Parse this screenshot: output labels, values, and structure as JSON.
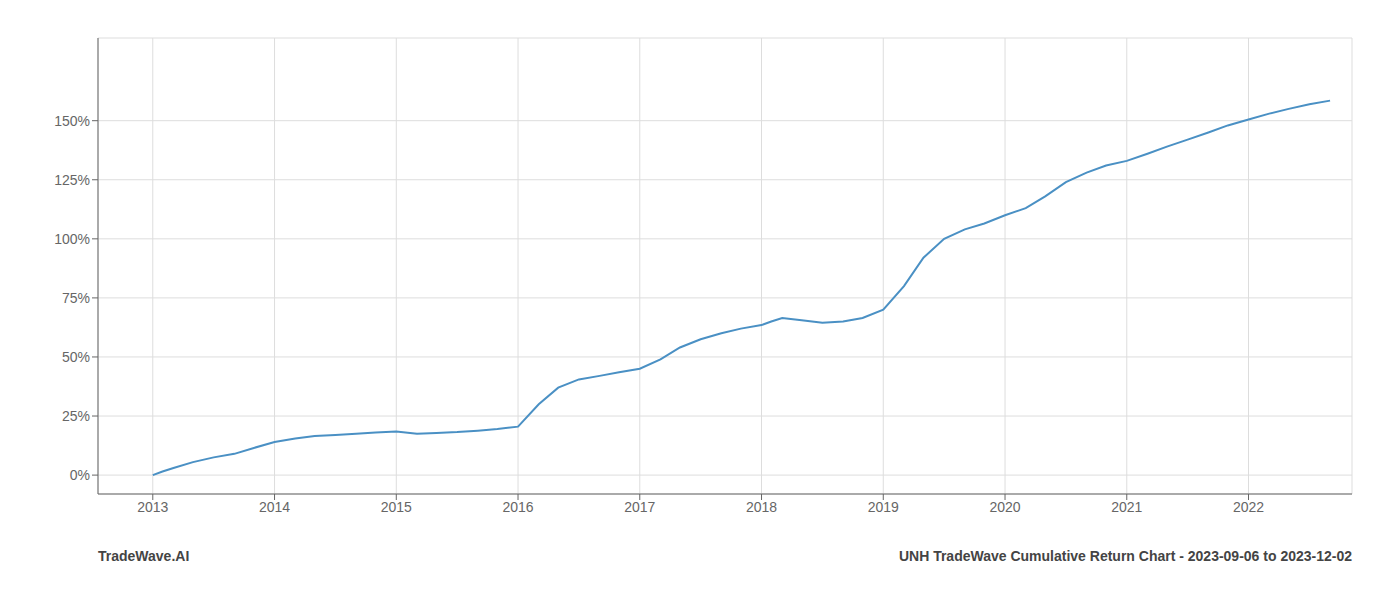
{
  "chart_data": {
    "type": "line",
    "annotations": [
      "TradeWave.AI",
      "UNH TradeWave Cumulative Return Chart - 2023-09-06 to 2023-12-02"
    ],
    "x": [
      2013.0,
      2013.08,
      2013.17,
      2013.33,
      2013.5,
      2013.67,
      2013.83,
      2014.0,
      2014.17,
      2014.33,
      2014.5,
      2014.67,
      2014.83,
      2015.0,
      2015.17,
      2015.33,
      2015.5,
      2015.67,
      2015.83,
      2016.0,
      2016.17,
      2016.33,
      2016.5,
      2016.67,
      2016.83,
      2017.0,
      2017.17,
      2017.33,
      2017.5,
      2017.67,
      2017.83,
      2018.0,
      2018.08,
      2018.17,
      2018.33,
      2018.5,
      2018.67,
      2018.83,
      2019.0,
      2019.17,
      2019.33,
      2019.5,
      2019.67,
      2019.83,
      2020.0,
      2020.17,
      2020.33,
      2020.5,
      2020.67,
      2020.83,
      2021.0,
      2021.17,
      2021.33,
      2021.5,
      2021.67,
      2021.83,
      2022.0,
      2022.17,
      2022.33,
      2022.5,
      2022.67
    ],
    "values": [
      0.0,
      1.5,
      3.0,
      5.5,
      7.5,
      9.0,
      11.5,
      14.0,
      15.5,
      16.5,
      17.0,
      17.5,
      18.0,
      18.5,
      17.5,
      17.8,
      18.2,
      18.8,
      19.5,
      20.5,
      30.0,
      37.0,
      40.5,
      42.0,
      43.5,
      45.0,
      49.0,
      54.0,
      57.5,
      60.0,
      62.0,
      63.5,
      65.0,
      66.5,
      65.5,
      64.5,
      65.0,
      66.5,
      70.0,
      80.0,
      92.0,
      100.0,
      104.0,
      106.5,
      110.0,
      113.0,
      118.0,
      124.0,
      128.0,
      131.0,
      133.0,
      136.0,
      139.0,
      142.0,
      145.0,
      148.0,
      150.5,
      153.0,
      155.0,
      157.0,
      158.5
    ],
    "color": "#4a90c4",
    "xlim": [
      2012.55,
      2022.85
    ],
    "xticks": [
      2013,
      2014,
      2015,
      2016,
      2017,
      2018,
      2019,
      2020,
      2021,
      2022
    ],
    "ylim": [
      -8,
      185
    ],
    "yticks": [
      {
        "value": 0,
        "label": "0%"
      },
      {
        "value": 25,
        "label": "25%"
      },
      {
        "value": 50,
        "label": "50%"
      },
      {
        "value": 75,
        "label": "75%"
      },
      {
        "value": 100,
        "label": "100%"
      },
      {
        "value": 125,
        "label": "125%"
      },
      {
        "value": 150,
        "label": "150%"
      }
    ],
    "grid": true
  }
}
